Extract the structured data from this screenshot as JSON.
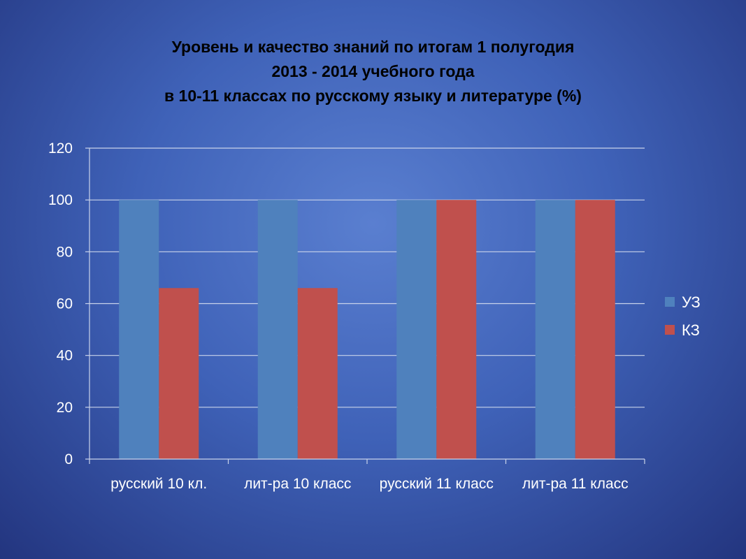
{
  "chart_data": {
    "type": "bar",
    "title_lines": [
      "Уровень и качество знаний по итогам  1 полугодия",
      "2013 - 2014 учебного  года",
      "в 10-11  классах по русскому языку и литературе (%)"
    ],
    "categories": [
      "русский 10 кл.",
      "лит-ра 10 класс",
      "русский 11 класс",
      "лит-ра 11 класс"
    ],
    "series": [
      {
        "name": "УЗ",
        "values": [
          100,
          100,
          100,
          100
        ],
        "color": "#4f81bd"
      },
      {
        "name": "КЗ",
        "values": [
          66,
          66,
          100,
          100
        ],
        "color": "#c0504d"
      }
    ],
    "ylim": [
      0,
      120
    ],
    "yticks": [
      0,
      20,
      40,
      60,
      80,
      100,
      120
    ],
    "grid": true,
    "legend_position": "right"
  }
}
